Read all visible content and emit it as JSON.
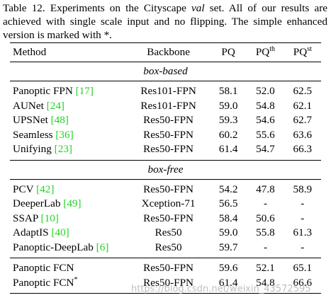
{
  "caption": {
    "part1": "Table 12. Experiments on the Cityscape ",
    "italic": "val",
    "part2": " set. All of our results are achieved with single scale input and no flipping. The simple enhanced version is marked with *."
  },
  "table": {
    "headers": {
      "method": "Method",
      "backbone": "Backbone",
      "pq": "PQ",
      "pq_th_base": "PQ",
      "pq_th_sup": "th",
      "pq_st_base": "PQ",
      "pq_st_sup": "st"
    },
    "sections": {
      "box_based": "box-based",
      "box_free": "box-free"
    },
    "box_based_rows": [
      {
        "method": "Panoptic FPN ",
        "ref": "[17]",
        "backbone": "Res101-FPN",
        "pq": "58.1",
        "pq_th": "52.0",
        "pq_st": "62.5"
      },
      {
        "method": "AUNet ",
        "ref": "[24]",
        "backbone": "Res101-FPN",
        "pq": "59.0",
        "pq_th": "54.8",
        "pq_st": "62.1"
      },
      {
        "method": "UPSNet ",
        "ref": "[48]",
        "backbone": "Res50-FPN",
        "pq": "59.3",
        "pq_th": "54.6",
        "pq_st": "62.7"
      },
      {
        "method": "Seamless ",
        "ref": "[36]",
        "backbone": "Res50-FPN",
        "pq": "60.2",
        "pq_th": "55.6",
        "pq_st": "63.6"
      },
      {
        "method": "Unifying ",
        "ref": "[23]",
        "backbone": "Res50-FPN",
        "pq": "61.4",
        "pq_th": "54.7",
        "pq_st": "66.3"
      }
    ],
    "box_free_rows": [
      {
        "method": "PCV ",
        "ref": "[42]",
        "backbone": "Res50-FPN",
        "pq": "54.2",
        "pq_th": "47.8",
        "pq_st": "58.9"
      },
      {
        "method": "DeeperLab ",
        "ref": "[49]",
        "backbone": "Xception-71",
        "pq": "56.5",
        "pq_th": "-",
        "pq_st": "-"
      },
      {
        "method": "SSAP ",
        "ref": "[10]",
        "backbone": "Res50-FPN",
        "pq": "58.4",
        "pq_th": "50.6",
        "pq_st": "-"
      },
      {
        "method": "AdaptIS ",
        "ref": "[40]",
        "backbone": "Res50",
        "pq": "59.0",
        "pq_th": "55.8",
        "pq_st": "61.3"
      },
      {
        "method": "Panoptic-DeepLab ",
        "ref": "[6]",
        "backbone": "Res50",
        "pq": "59.7",
        "pq_th": "-",
        "pq_st": "-"
      }
    ],
    "ours_rows": [
      {
        "method": "Panoptic FCN",
        "sup": "",
        "backbone": "Res50-FPN",
        "pq": "59.6",
        "pq_th": "52.1",
        "pq_st": "65.1"
      },
      {
        "method": "Panoptic FCN",
        "sup": "*",
        "backbone": "Res50-FPN",
        "pq": "61.4",
        "pq_th": "54.8",
        "pq_st": "66.6"
      }
    ]
  },
  "watermark": "https://blog.csdn.net/weixin_43572595"
}
